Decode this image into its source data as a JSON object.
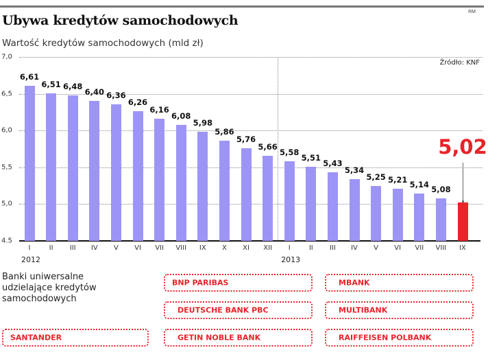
{
  "header": {
    "title": "Ubywa kredytów samochodowych",
    "subtitle": "Wartość kredytów samochodowych (mld zł)",
    "author": "RM",
    "source": "Źródło: KNF"
  },
  "colors": {
    "bar": "#9d95f5",
    "highlight": "#e8232a",
    "bank_text": "#e8232a"
  },
  "chart_data": {
    "type": "bar",
    "title": "Ubywa kredytów samochodowych",
    "subtitle": "Wartość kredytów samochodowych (mld zł)",
    "xlabel": "",
    "ylabel": "mld zł",
    "ylim": [
      4.5,
      7.0
    ],
    "yticks": [
      "7,0",
      "6,5",
      "6,0",
      "5,5",
      "5,0",
      "4.5"
    ],
    "grid": true,
    "categories": [
      "I",
      "II",
      "III",
      "IV",
      "V",
      "VI",
      "VII",
      "VIII",
      "IX",
      "X",
      "XI",
      "XII",
      "I",
      "II",
      "III",
      "IV",
      "V",
      "VI",
      "VII",
      "VIII",
      "IX"
    ],
    "years": [
      {
        "label": "2012",
        "start_index": 0
      },
      {
        "label": "2013",
        "start_index": 12
      }
    ],
    "values": [
      6.61,
      6.51,
      6.48,
      6.4,
      6.36,
      6.26,
      6.16,
      6.08,
      5.98,
      5.86,
      5.76,
      5.66,
      5.58,
      5.51,
      5.43,
      5.34,
      5.25,
      5.21,
      5.14,
      5.08,
      5.02
    ],
    "labels": [
      "6,61",
      "6,51",
      "6,48",
      "6,40",
      "6,36",
      "6,26",
      "6,16",
      "6,08",
      "5,98",
      "5,86",
      "5,76",
      "5,66",
      "5,58",
      "5,51",
      "5,43",
      "5,34",
      "5,25",
      "5,21",
      "5,14",
      "5,08",
      "5,02"
    ],
    "highlight_index": 20,
    "source": "Źródło: KNF"
  },
  "banks": {
    "label": "Banki uniwersalne udzielające kredytów samochodowych",
    "items": [
      "SANTANDER",
      "BNP PARIBAS",
      "DEUTSCHE BANK PBC",
      "GETIN NOBLE BANK",
      "MBANK",
      "MULTIBANK",
      "RAIFFEISEN POLBANK"
    ]
  }
}
